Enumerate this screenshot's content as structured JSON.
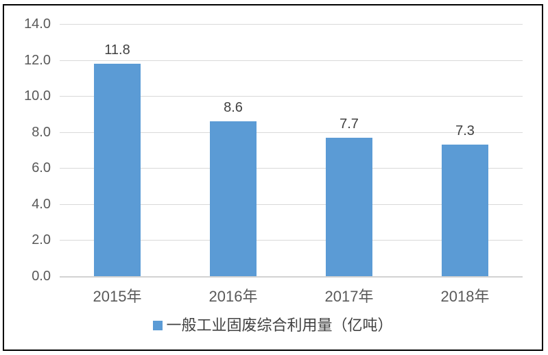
{
  "chart_data": {
    "type": "bar",
    "categories": [
      "2015年",
      "2016年",
      "2017年",
      "2018年"
    ],
    "values": [
      11.8,
      8.6,
      7.7,
      7.3
    ],
    "data_labels": [
      "11.8",
      "8.6",
      "7.7",
      "7.3"
    ],
    "series": [
      {
        "name": "一般工业固废综合利用量（亿吨）",
        "values": [
          11.8,
          8.6,
          7.7,
          7.3
        ]
      }
    ],
    "title": "",
    "xlabel": "",
    "ylabel": "",
    "ylim": [
      0,
      14
    ],
    "ytick_step": 2,
    "yticks": [
      "14.0",
      "12.0",
      "10.0",
      "8.0",
      "6.0",
      "4.0",
      "2.0",
      "0.0"
    ],
    "grid": true,
    "legend": {
      "label": "一般工业固废综合利用量（亿吨）",
      "position": "bottom"
    }
  },
  "colors": {
    "bar": "#5B9BD5",
    "gridline": "#D9D9D9",
    "axis_line": "#D2D2D2",
    "tick_label": "#595959",
    "data_label": "#404040",
    "legend_text": "#404040",
    "frame_border": "#000000",
    "background": "#FFFFFF"
  }
}
